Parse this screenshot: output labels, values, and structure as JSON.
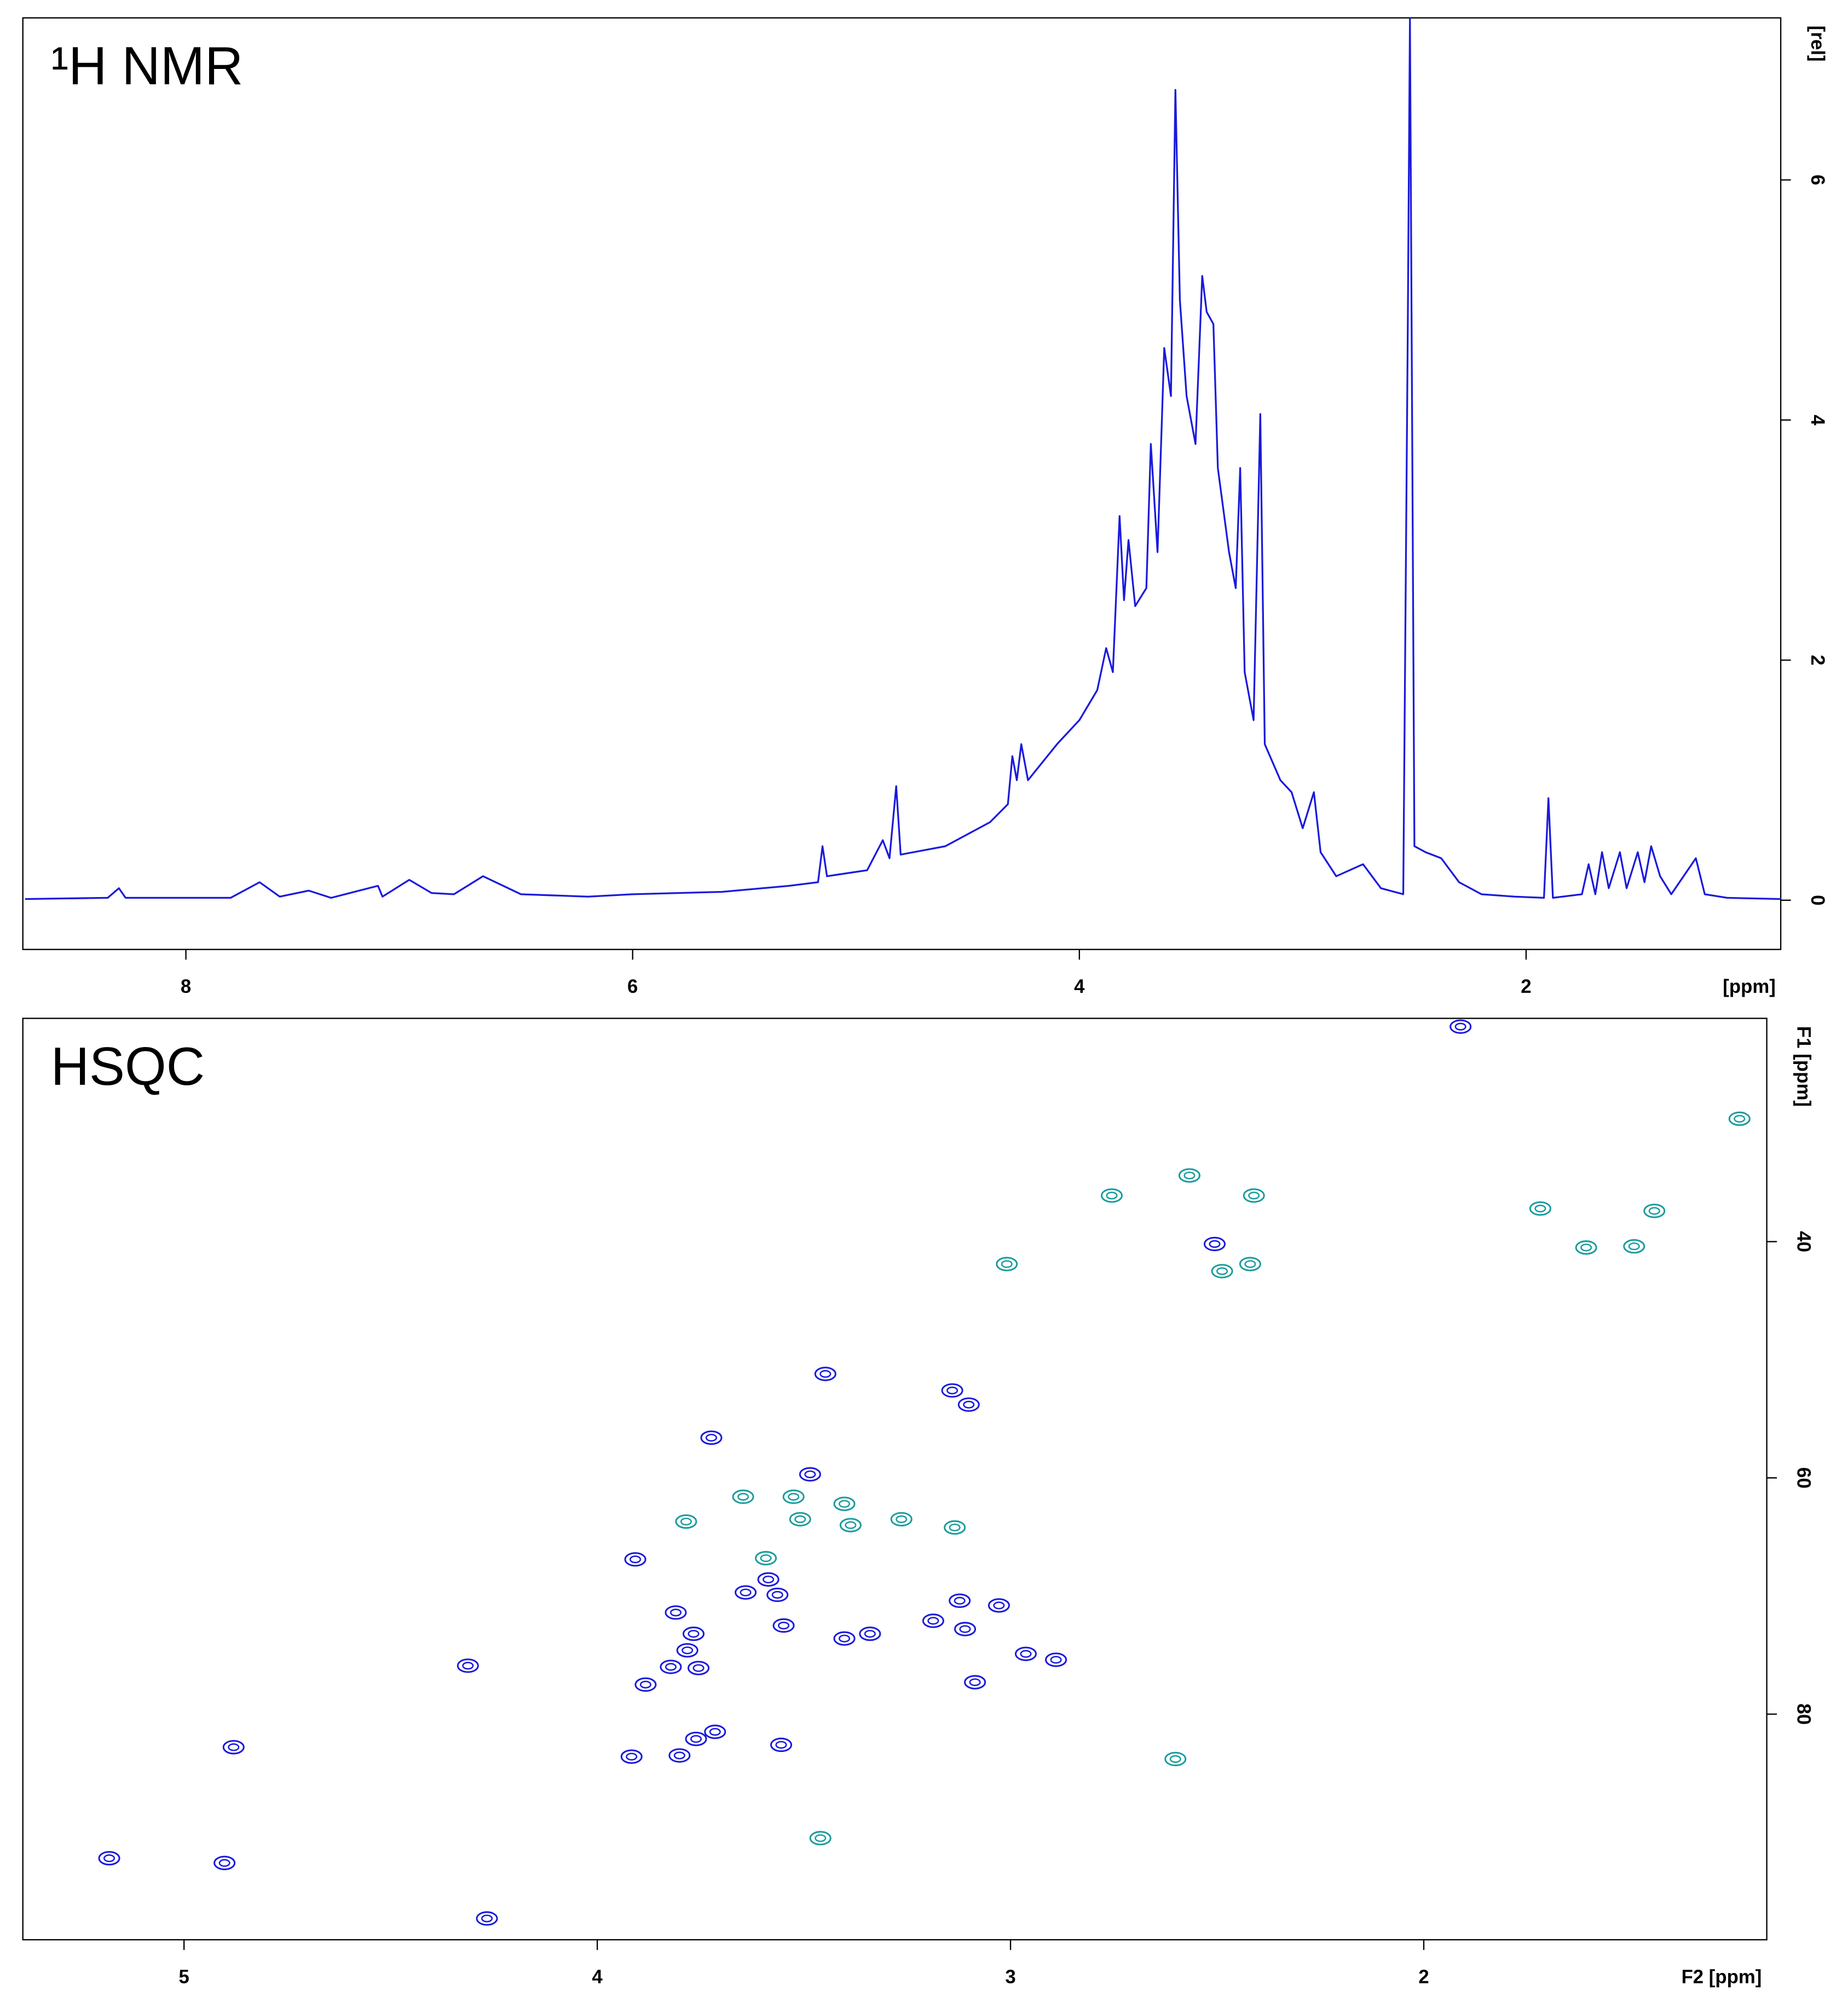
{
  "chart_data": [
    {
      "type": "line",
      "title": "¹H NMR",
      "x_label": "[ppm]",
      "y_label": "[rel]",
      "xlim": [
        8.73,
        0.86
      ],
      "ylim": [
        -0.41,
        7.35
      ],
      "xticks": [
        8,
        6,
        4,
        2
      ],
      "yticks": [
        0,
        2,
        4,
        6
      ],
      "x": [
        8.72,
        8.35,
        8.3,
        8.27,
        7.8,
        7.67,
        7.58,
        7.45,
        7.35,
        7.14,
        7.12,
        7.0,
        6.9,
        6.8,
        6.67,
        6.5,
        6.2,
        6.0,
        5.6,
        5.3,
        5.17,
        5.15,
        5.13,
        4.95,
        4.88,
        4.85,
        4.82,
        4.8,
        4.6,
        4.4,
        4.32,
        4.3,
        4.28,
        4.26,
        4.23,
        4.1,
        4.0,
        3.92,
        3.88,
        3.85,
        3.82,
        3.8,
        3.78,
        3.75,
        3.7,
        3.68,
        3.65,
        3.62,
        3.59,
        3.57,
        3.55,
        3.52,
        3.48,
        3.45,
        3.43,
        3.4,
        3.38,
        3.33,
        3.3,
        3.28,
        3.26,
        3.22,
        3.19,
        3.17,
        3.1,
        3.05,
        3.0,
        2.95,
        2.92,
        2.85,
        2.73,
        2.65,
        2.55,
        2.53,
        2.52,
        2.5,
        2.45,
        2.38,
        2.3,
        2.2,
        2.05,
        1.92,
        1.9,
        1.88,
        1.75,
        1.72,
        1.69,
        1.66,
        1.63,
        1.58,
        1.55,
        1.5,
        1.47,
        1.44,
        1.4,
        1.35,
        1.24,
        1.2,
        1.1,
        0.86
      ],
      "series": [
        {
          "color": "#1a1adc",
          "values": [
            0.01,
            0.02,
            0.1,
            0.02,
            0.02,
            0.15,
            0.03,
            0.08,
            0.02,
            0.12,
            0.03,
            0.17,
            0.06,
            0.05,
            0.2,
            0.05,
            0.03,
            0.05,
            0.07,
            0.12,
            0.15,
            0.45,
            0.2,
            0.25,
            0.5,
            0.35,
            0.95,
            0.38,
            0.45,
            0.65,
            0.8,
            1.2,
            1.0,
            1.3,
            1.0,
            1.3,
            1.5,
            1.75,
            2.1,
            1.9,
            3.2,
            2.5,
            3.0,
            2.45,
            2.6,
            3.8,
            2.9,
            4.6,
            4.2,
            6.75,
            5.0,
            4.2,
            3.8,
            5.2,
            4.9,
            4.8,
            3.6,
            2.9,
            2.6,
            3.6,
            1.9,
            1.5,
            4.05,
            1.3,
            1.0,
            0.9,
            0.6,
            0.9,
            0.4,
            0.2,
            0.3,
            0.1,
            0.05,
            4.7,
            7.35,
            0.45,
            0.4,
            0.35,
            0.15,
            0.05,
            0.03,
            0.02,
            0.85,
            0.02,
            0.05,
            0.3,
            0.05,
            0.4,
            0.1,
            0.4,
            0.1,
            0.4,
            0.15,
            0.45,
            0.2,
            0.05,
            0.35,
            0.05,
            0.02,
            0.01
          ]
        }
      ]
    },
    {
      "type": "scatter",
      "title": "HSQC",
      "x_label": "F2 [ppm]",
      "y_label": "F1 [ppm]",
      "xlim": [
        5.39,
        1.17
      ],
      "ylim": [
        99.1,
        21.1
      ],
      "xticks": [
        5,
        4,
        3,
        2
      ],
      "yticks": [
        40,
        60,
        80
      ],
      "series": [
        {
          "color": "#1a1adc",
          "x": [
            1.911,
            2.506,
            3.448,
            3.141,
            3.101,
            3.724,
            3.485,
            3.908,
            3.586,
            3.641,
            3.564,
            3.123,
            3.028,
            3.187,
            3.11,
            3.81,
            3.767,
            3.549,
            3.402,
            3.34,
            3.782,
            2.963,
            2.89,
            3.822,
            3.755,
            3.883,
            3.086,
            3.715,
            3.761,
            3.555,
            4.88,
            3.917,
            3.801,
            5.181,
            4.902,
            4.267,
            4.313
          ],
          "values": [
            21.8,
            40.2,
            51.2,
            52.6,
            53.8,
            56.6,
            59.7,
            66.9,
            68.6,
            69.7,
            69.9,
            70.4,
            70.8,
            72.1,
            72.8,
            71.4,
            73.2,
            72.5,
            73.6,
            73.2,
            74.6,
            74.9,
            75.4,
            76.0,
            76.1,
            77.5,
            77.3,
            81.5,
            82.1,
            82.6,
            82.8,
            83.6,
            83.5,
            92.2,
            92.6,
            97.3,
            75.9
          ]
        },
        {
          "color": "#1a9c9c",
          "x": [
            1.236,
            2.755,
            2.567,
            2.411,
            1.718,
            1.442,
            1.607,
            1.491,
            3.009,
            2.42,
            2.488,
            3.647,
            3.525,
            3.402,
            3.509,
            3.387,
            3.264,
            3.785,
            3.135,
            3.592,
            2.601,
            3.46
          ],
          "values": [
            29.6,
            36.1,
            34.4,
            36.1,
            37.2,
            37.4,
            40.5,
            40.4,
            41.9,
            41.9,
            42.5,
            61.6,
            61.6,
            62.2,
            63.5,
            64.0,
            63.5,
            63.7,
            64.2,
            66.8,
            83.8,
            90.5
          ]
        }
      ]
    }
  ]
}
